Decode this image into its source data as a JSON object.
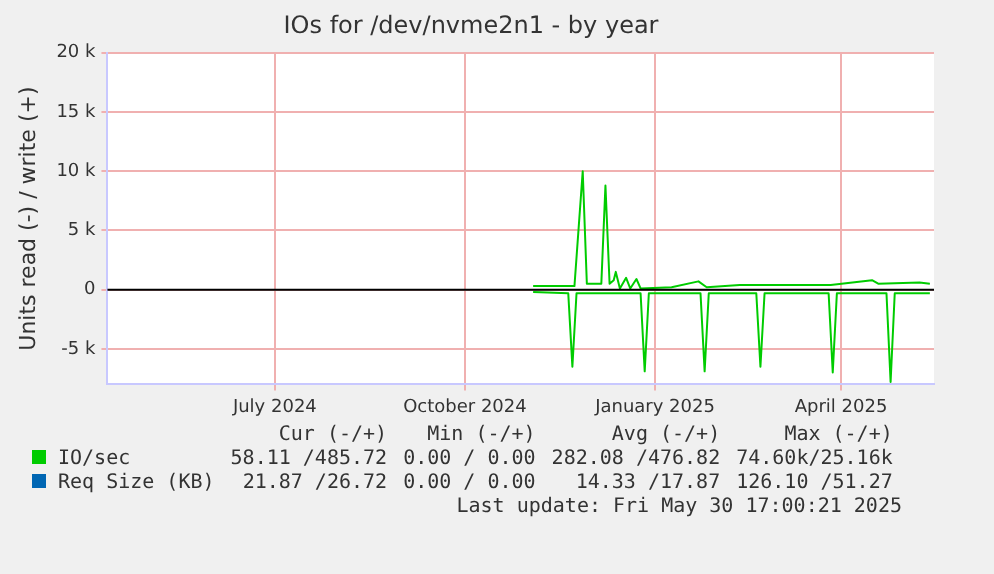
{
  "chart_data": {
    "type": "line",
    "title": "IOs for /dev/nvme2n1 - by year",
    "ylabel": "Units read (-) / write (+)",
    "xlim": [
      "2024-04-11",
      "2025-05-16"
    ],
    "xticks": [
      {
        "value": "2024-07-01",
        "label": "July 2024"
      },
      {
        "value": "2024-10-01",
        "label": "October 2024"
      },
      {
        "value": "2025-01-01",
        "label": "January 2025"
      },
      {
        "value": "2025-04-01",
        "label": "April 2025"
      }
    ],
    "ylim": [
      -8000,
      20000
    ],
    "yticks": [
      {
        "value": -5000,
        "label": "-5 k"
      },
      0,
      {
        "value": 5000,
        "label": "5 k"
      },
      {
        "value": 10000,
        "label": "10 k"
      },
      {
        "value": 15000,
        "label": "15 k"
      },
      {
        "value": 20000,
        "label": "20 k"
      }
    ],
    "series": [
      {
        "name": "IO/sec",
        "color": "#00cc00",
        "x": [
          "2024-11-03",
          "2024-11-23",
          "2024-11-27",
          "2024-11-29",
          "2024-12-06",
          "2024-12-08",
          "2024-12-10",
          "2024-12-12",
          "2024-12-13",
          "2024-12-15",
          "2024-12-18",
          "2024-12-20",
          "2024-12-23",
          "2024-12-25",
          "2025-01-09",
          "2025-01-22",
          "2025-01-26",
          "2025-02-11",
          "2025-03-27",
          "2025-04-16",
          "2025-04-19",
          "2025-05-09",
          "2025-05-14"
        ],
        "values": [
          300,
          300,
          10000,
          500,
          500,
          8800,
          500,
          800,
          1500,
          100,
          1000,
          100,
          900,
          100,
          200,
          700,
          200,
          400,
          400,
          800,
          500,
          600,
          500
        ]
      },
      {
        "color": "#00cc00",
        "x": [
          "2024-11-03",
          "2024-11-20",
          "2024-11-22",
          "2024-11-24",
          "2024-12-25",
          "2024-12-27",
          "2024-12-29",
          "2025-01-23",
          "2025-01-25",
          "2025-01-27",
          "2025-02-19",
          "2025-02-21",
          "2025-02-23",
          "2025-03-26",
          "2025-03-28",
          "2025-03-30",
          "2025-04-23",
          "2025-04-25",
          "2025-04-27",
          "2025-05-14"
        ],
        "values": [
          -200,
          -300,
          -6500,
          -300,
          -300,
          -6900,
          -300,
          -300,
          -6900,
          -300,
          -300,
          -6500,
          -300,
          -300,
          -7000,
          -300,
          -300,
          -7800,
          -300,
          -300
        ]
      },
      {
        "name": "Req Size (KB)",
        "color": "#0066b3"
      }
    ],
    "ref_lines": [
      {
        "axis": "y",
        "value": 0,
        "color": "#000000"
      }
    ],
    "grid": true,
    "legend": "bottom",
    "marker": "none",
    "line_style": "solid",
    "annotations": [
      "Cur (-/+)",
      "Min (-/+)",
      "Avg (-/+)",
      "Max (-/+)",
      "58.11 /485.72",
      "0.00 / 0.00",
      "282.08 /476.82",
      "74.60k/25.16k",
      "21.87 /26.72",
      "0.00 / 0.00",
      "14.33 /17.87",
      "126.10 /51.27",
      "Last update: Fri May 30 17:00:21 2025"
    ]
  }
}
